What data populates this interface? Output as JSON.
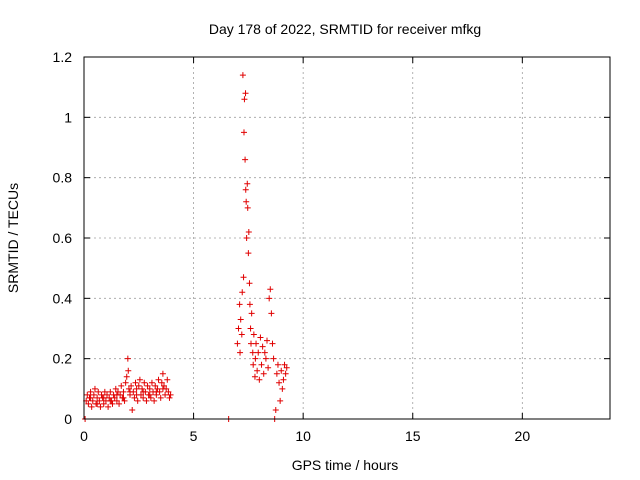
{
  "chart_data": {
    "type": "scatter",
    "title": "Day 178 of 2022, SRMTID for receiver mfkg",
    "xlabel": "GPS time / hours",
    "ylabel": "SRMTID / TECUs",
    "xlim": [
      0,
      24
    ],
    "ylim": [
      0,
      1.2
    ],
    "xticks": [
      0,
      5,
      10,
      15,
      20
    ],
    "yticks": [
      0,
      0.2,
      0.4,
      0.6,
      0.8,
      1,
      1.2
    ],
    "x_tick_labels": [
      "0",
      "5",
      "10",
      "15",
      "20"
    ],
    "y_tick_labels": [
      "0",
      "0.2",
      "0.4",
      "0.6",
      "0.8",
      "1",
      "1.2"
    ],
    "grid": true,
    "marker": "plus",
    "color": "#e00000",
    "series": [
      {
        "name": "SRMTID",
        "points": [
          [
            0.05,
            0.0
          ],
          [
            0.1,
            0.06
          ],
          [
            0.15,
            0.08
          ],
          [
            0.2,
            0.05
          ],
          [
            0.25,
            0.07
          ],
          [
            0.3,
            0.09
          ],
          [
            0.35,
            0.04
          ],
          [
            0.4,
            0.06
          ],
          [
            0.45,
            0.08
          ],
          [
            0.5,
            0.1
          ],
          [
            0.55,
            0.05
          ],
          [
            0.6,
            0.07
          ],
          [
            0.65,
            0.09
          ],
          [
            0.7,
            0.06
          ],
          [
            0.75,
            0.04
          ],
          [
            0.8,
            0.08
          ],
          [
            0.85,
            0.07
          ],
          [
            0.9,
            0.05
          ],
          [
            0.95,
            0.09
          ],
          [
            1.0,
            0.06
          ],
          [
            1.05,
            0.08
          ],
          [
            1.1,
            0.04
          ],
          [
            1.15,
            0.07
          ],
          [
            1.2,
            0.09
          ],
          [
            1.25,
            0.06
          ],
          [
            1.3,
            0.05
          ],
          [
            1.35,
            0.08
          ],
          [
            1.4,
            0.07
          ],
          [
            1.45,
            0.1
          ],
          [
            1.5,
            0.06
          ],
          [
            1.55,
            0.09
          ],
          [
            1.6,
            0.05
          ],
          [
            1.65,
            0.08
          ],
          [
            1.7,
            0.11
          ],
          [
            1.75,
            0.07
          ],
          [
            1.8,
            0.09
          ],
          [
            1.85,
            0.06
          ],
          [
            1.9,
            0.12
          ],
          [
            1.95,
            0.14
          ],
          [
            2.0,
            0.2
          ],
          [
            2.02,
            0.16
          ],
          [
            2.05,
            0.1
          ],
          [
            2.1,
            0.08
          ],
          [
            2.15,
            0.11
          ],
          [
            2.2,
            0.03
          ],
          [
            2.25,
            0.09
          ],
          [
            2.3,
            0.07
          ],
          [
            2.35,
            0.12
          ],
          [
            2.4,
            0.1
          ],
          [
            2.45,
            0.06
          ],
          [
            2.5,
            0.11
          ],
          [
            2.55,
            0.13
          ],
          [
            2.6,
            0.08
          ],
          [
            2.65,
            0.1
          ],
          [
            2.7,
            0.07
          ],
          [
            2.75,
            0.12
          ],
          [
            2.8,
            0.09
          ],
          [
            2.85,
            0.06
          ],
          [
            2.9,
            0.11
          ],
          [
            2.95,
            0.08
          ],
          [
            3.0,
            0.1
          ],
          [
            3.05,
            0.07
          ],
          [
            3.1,
            0.12
          ],
          [
            3.15,
            0.09
          ],
          [
            3.2,
            0.06
          ],
          [
            3.25,
            0.11
          ],
          [
            3.3,
            0.08
          ],
          [
            3.35,
            0.1
          ],
          [
            3.4,
            0.13
          ],
          [
            3.45,
            0.09
          ],
          [
            3.5,
            0.07
          ],
          [
            3.55,
            0.12
          ],
          [
            3.6,
            0.15
          ],
          [
            3.65,
            0.11
          ],
          [
            3.7,
            0.08
          ],
          [
            3.75,
            0.1
          ],
          [
            3.8,
            0.13
          ],
          [
            3.85,
            0.09
          ],
          [
            3.9,
            0.07
          ],
          [
            3.95,
            0.08
          ],
          [
            0.3,
            0.07
          ],
          [
            0.6,
            0.05
          ],
          [
            0.9,
            0.07
          ],
          [
            1.2,
            0.06
          ],
          [
            1.5,
            0.08
          ],
          [
            1.8,
            0.07
          ],
          [
            2.1,
            0.09
          ],
          [
            2.4,
            0.08
          ],
          [
            2.7,
            0.09
          ],
          [
            3.0,
            0.08
          ],
          [
            3.3,
            0.09
          ],
          [
            3.6,
            0.1
          ],
          [
            6.6,
            0.0
          ],
          [
            7.0,
            0.25
          ],
          [
            7.05,
            0.3
          ],
          [
            7.1,
            0.38
          ],
          [
            7.12,
            0.22
          ],
          [
            7.15,
            0.33
          ],
          [
            7.2,
            0.28
          ],
          [
            7.22,
            0.42
          ],
          [
            7.25,
            1.14
          ],
          [
            7.28,
            0.47
          ],
          [
            7.3,
            0.95
          ],
          [
            7.32,
            1.06
          ],
          [
            7.35,
            0.86
          ],
          [
            7.37,
            1.08
          ],
          [
            7.38,
            0.76
          ],
          [
            7.4,
            0.72
          ],
          [
            7.42,
            0.6
          ],
          [
            7.45,
            0.78
          ],
          [
            7.47,
            0.7
          ],
          [
            7.5,
            0.55
          ],
          [
            7.52,
            0.62
          ],
          [
            7.55,
            0.45
          ],
          [
            7.57,
            0.38
          ],
          [
            7.6,
            0.3
          ],
          [
            7.62,
            0.25
          ],
          [
            7.65,
            0.35
          ],
          [
            7.7,
            0.22
          ],
          [
            7.72,
            0.18
          ],
          [
            7.75,
            0.28
          ],
          [
            7.8,
            0.14
          ],
          [
            7.82,
            0.2
          ],
          [
            7.85,
            0.25
          ],
          [
            7.9,
            0.16
          ],
          [
            7.95,
            0.22
          ],
          [
            8.0,
            0.13
          ],
          [
            8.05,
            0.27
          ],
          [
            8.1,
            0.18
          ],
          [
            8.15,
            0.24
          ],
          [
            8.2,
            0.15
          ],
          [
            8.25,
            0.22
          ],
          [
            8.3,
            0.2
          ],
          [
            8.35,
            0.26
          ],
          [
            8.4,
            0.17
          ],
          [
            8.45,
            0.4
          ],
          [
            8.5,
            0.43
          ],
          [
            8.55,
            0.35
          ],
          [
            8.6,
            0.25
          ],
          [
            8.65,
            0.2
          ],
          [
            8.7,
            0.0
          ],
          [
            8.75,
            0.03
          ],
          [
            8.8,
            0.15
          ],
          [
            8.85,
            0.18
          ],
          [
            8.9,
            0.12
          ],
          [
            8.95,
            0.06
          ],
          [
            9.0,
            0.16
          ],
          [
            9.05,
            0.1
          ],
          [
            9.1,
            0.13
          ],
          [
            9.15,
            0.18
          ],
          [
            9.2,
            0.15
          ],
          [
            9.25,
            0.17
          ]
        ]
      }
    ]
  }
}
